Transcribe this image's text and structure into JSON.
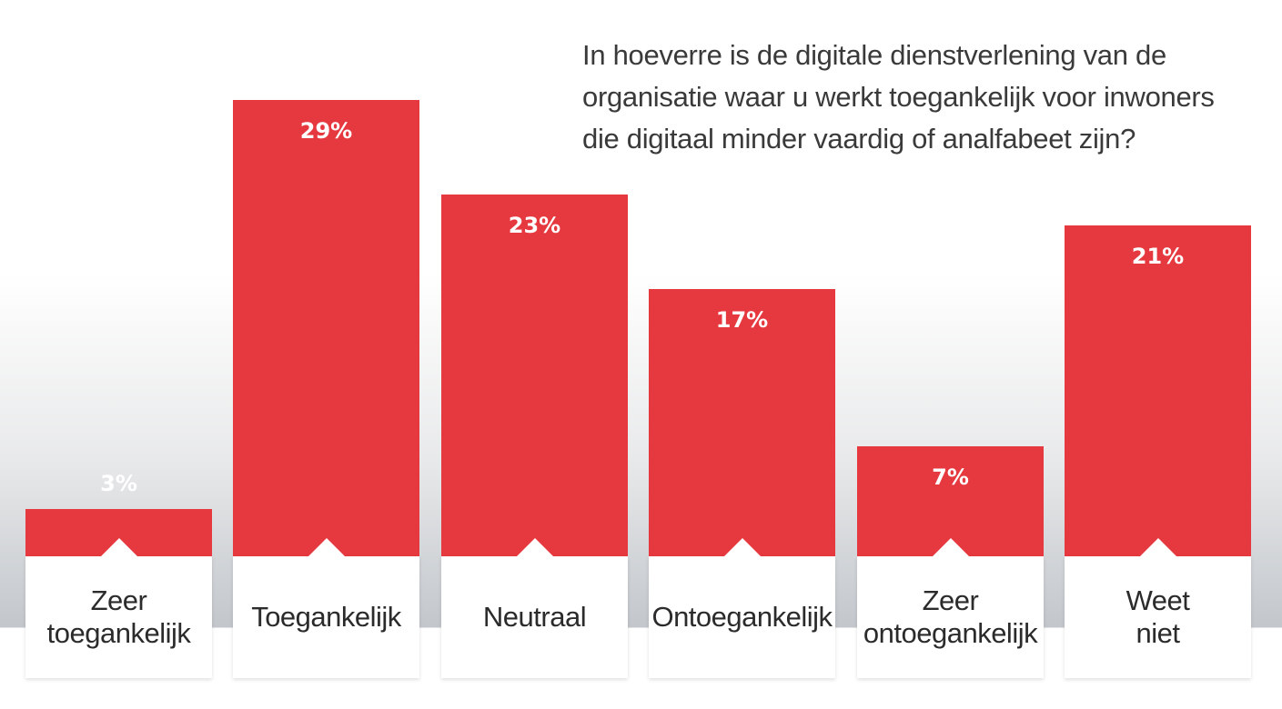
{
  "chart_data": {
    "type": "bar",
    "title": "In hoeverre is de digitale dienstverlening van de organisatie waar u werkt toegankelijk voor inwoners die digitaal minder vaardig of analfabeet zijn?",
    "categories": [
      "Zeer\ntoegankelijk",
      "Toegankelijk",
      "Neutraal",
      "Ontoegankelijk",
      "Zeer\nontoegankelijk",
      "Weet\nniet"
    ],
    "values": [
      3,
      29,
      23,
      17,
      7,
      21
    ],
    "value_labels": [
      "3%",
      "29%",
      "23%",
      "17%",
      "7%",
      "21%"
    ],
    "unit": "%",
    "ylim": [
      0,
      29
    ],
    "grid": false,
    "legend": "none",
    "bar_color": "#e6393f",
    "small_label_color": "#ffffff"
  }
}
